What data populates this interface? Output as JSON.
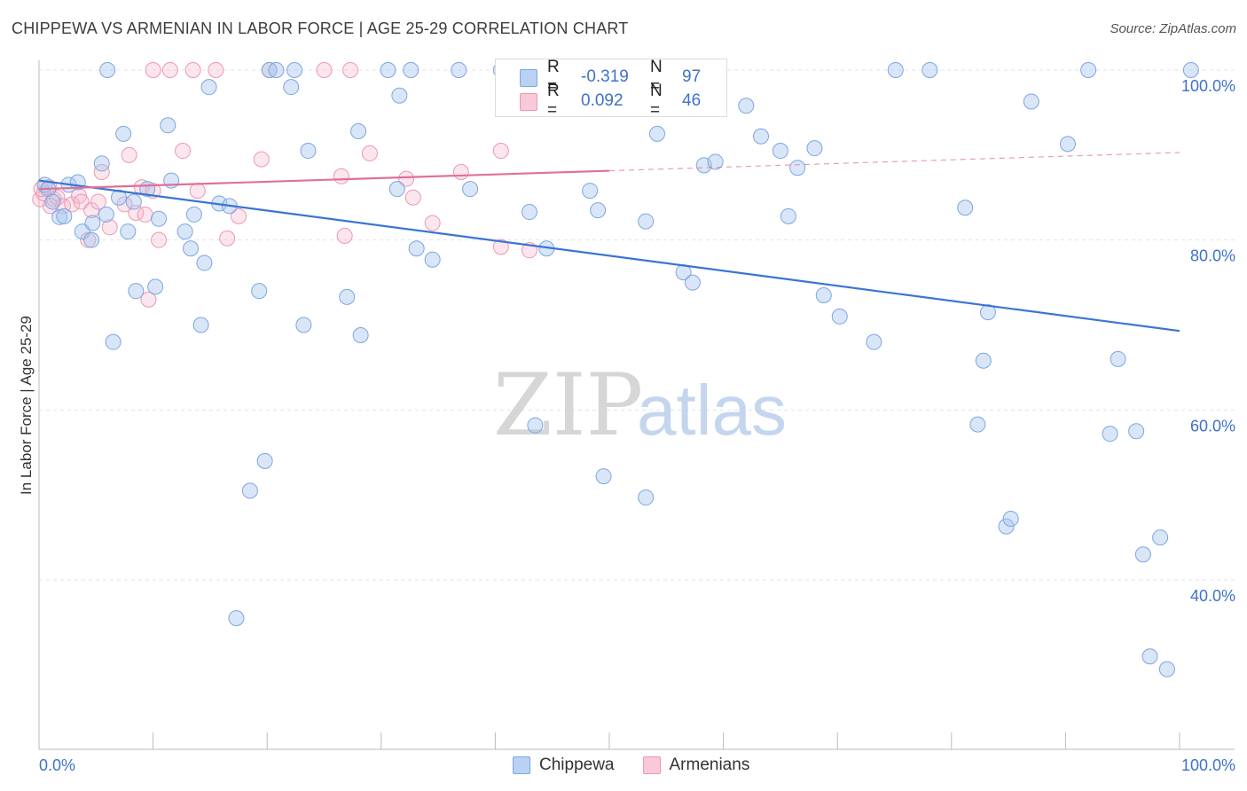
{
  "header": {
    "title": "CHIPPEWA VS ARMENIAN IN LABOR FORCE | AGE 25-29 CORRELATION CHART",
    "source": "Source: ZipAtlas.com"
  },
  "legend": {
    "rows": [
      {
        "r_label": "R =",
        "r_value": "-0.319",
        "n_label": "N =",
        "n_value": "97"
      },
      {
        "r_label": "R =",
        "r_value": "0.092",
        "n_label": "N =",
        "n_value": "46"
      }
    ]
  },
  "bottom_legend": {
    "items": [
      {
        "label": "Chippewa"
      },
      {
        "label": "Armenians"
      }
    ]
  },
  "watermark": {
    "zip": "ZIP",
    "atlas": "atlas"
  },
  "chart_data": {
    "type": "scatter",
    "title": "CHIPPEWA VS ARMENIAN IN LABOR FORCE | AGE 25-29 CORRELATION CHART",
    "xlabel": "",
    "ylabel": "In Labor Force | Age 25-29",
    "xlim": [
      0,
      100
    ],
    "ylim": [
      20,
      102
    ],
    "x_tick_labels": [
      "0.0%",
      "100.0%"
    ],
    "y_ticks": [
      40,
      60,
      80,
      100
    ],
    "y_tick_labels": [
      "40.0%",
      "60.0%",
      "80.0%",
      "100.0%"
    ],
    "grid": true,
    "colors": {
      "chippewa": "#a9c8f0",
      "chippewa_line": "#3a74d4",
      "armenians": "#f6b8cc",
      "armenians_line": "#e0709a"
    },
    "series": [
      {
        "name": "Chippewa",
        "r": -0.319,
        "n": 97,
        "trend": {
          "x0": 0,
          "y0": 87.0,
          "x1": 100,
          "y1": 69.3
        },
        "points": [
          [
            0.5,
            86.5
          ],
          [
            0.8,
            86.0
          ],
          [
            1.2,
            84.5
          ],
          [
            1.8,
            82.7
          ],
          [
            2.2,
            82.8
          ],
          [
            2.6,
            86.5
          ],
          [
            3.4,
            86.8
          ],
          [
            3.8,
            81.0
          ],
          [
            4.6,
            80.0
          ],
          [
            4.7,
            82.0
          ],
          [
            5.5,
            89.0
          ],
          [
            5.9,
            83.0
          ],
          [
            6.5,
            68.0
          ],
          [
            7.0,
            85.0
          ],
          [
            7.4,
            92.5
          ],
          [
            7.8,
            81.0
          ],
          [
            8.3,
            84.5
          ],
          [
            8.5,
            74.0
          ],
          [
            9.5,
            86.0
          ],
          [
            10.2,
            74.5
          ],
          [
            10.5,
            82.5
          ],
          [
            11.3,
            93.5
          ],
          [
            11.6,
            87.0
          ],
          [
            12.8,
            81.0
          ],
          [
            13.3,
            79.0
          ],
          [
            13.6,
            83.0
          ],
          [
            14.2,
            70.0
          ],
          [
            14.5,
            77.3
          ],
          [
            14.9,
            98.0
          ],
          [
            15.8,
            84.3
          ],
          [
            16.7,
            84.0
          ],
          [
            17.3,
            35.5
          ],
          [
            18.5,
            50.5
          ],
          [
            19.3,
            74.0
          ],
          [
            19.8,
            54.0
          ],
          [
            20.2,
            100.0
          ],
          [
            20.8,
            100.0
          ],
          [
            22.1,
            98.0
          ],
          [
            22.4,
            100.0
          ],
          [
            23.2,
            70.0
          ],
          [
            23.6,
            90.5
          ],
          [
            27.0,
            73.3
          ],
          [
            28.0,
            92.8
          ],
          [
            28.2,
            68.8
          ],
          [
            30.6,
            100.0
          ],
          [
            31.4,
            86.0
          ],
          [
            31.6,
            97.0
          ],
          [
            32.6,
            100.0
          ],
          [
            33.1,
            79.0
          ],
          [
            34.5,
            77.7
          ],
          [
            36.8,
            100.0
          ],
          [
            37.8,
            86.0
          ],
          [
            43.0,
            83.3
          ],
          [
            43.5,
            58.2
          ],
          [
            44.5,
            79.0
          ],
          [
            44.8,
            95.5
          ],
          [
            48.3,
            85.8
          ],
          [
            49.0,
            83.5
          ],
          [
            49.5,
            52.2
          ],
          [
            53.2,
            49.7
          ],
          [
            53.2,
            82.2
          ],
          [
            54.2,
            92.5
          ],
          [
            56.5,
            76.2
          ],
          [
            58.3,
            88.8
          ],
          [
            59.3,
            89.2
          ],
          [
            62.0,
            95.8
          ],
          [
            63.3,
            92.2
          ],
          [
            65.0,
            90.5
          ],
          [
            65.7,
            82.8
          ],
          [
            68.0,
            90.8
          ],
          [
            68.8,
            73.5
          ],
          [
            70.2,
            71.0
          ],
          [
            73.2,
            68.0
          ],
          [
            75.1,
            100.0
          ],
          [
            78.1,
            100.0
          ],
          [
            81.2,
            83.8
          ],
          [
            82.3,
            58.3
          ],
          [
            82.8,
            65.8
          ],
          [
            83.2,
            71.5
          ],
          [
            84.8,
            46.3
          ],
          [
            85.2,
            47.2
          ],
          [
            87.0,
            96.3
          ],
          [
            90.2,
            91.3
          ],
          [
            92.0,
            100.0
          ],
          [
            93.9,
            57.2
          ],
          [
            94.6,
            66.0
          ],
          [
            96.2,
            57.5
          ],
          [
            96.8,
            43.0
          ],
          [
            97.4,
            31.0
          ],
          [
            98.3,
            45.0
          ],
          [
            98.9,
            29.5
          ],
          [
            101.0,
            100.0
          ],
          [
            66.5,
            88.5
          ],
          [
            57.3,
            75.0
          ],
          [
            40.5,
            100.0
          ],
          [
            6.0,
            100.0
          ],
          [
            46.2,
            100.0
          ]
        ]
      },
      {
        "name": "Armenians",
        "r": 0.092,
        "n": 46,
        "trend": {
          "x0": 0,
          "y0": 86.0,
          "x1": 100,
          "y1": 90.3
        },
        "points": [
          [
            0.1,
            84.8
          ],
          [
            0.4,
            85.5
          ],
          [
            0.9,
            86.2
          ],
          [
            1.3,
            84.8
          ],
          [
            1.6,
            85.0
          ],
          [
            2.1,
            84.0
          ],
          [
            2.9,
            84.2
          ],
          [
            3.5,
            85.2
          ],
          [
            3.7,
            84.5
          ],
          [
            4.3,
            80.0
          ],
          [
            4.6,
            83.5
          ],
          [
            5.2,
            84.5
          ],
          [
            5.5,
            88.0
          ],
          [
            6.2,
            81.5
          ],
          [
            7.5,
            84.2
          ],
          [
            7.9,
            90.0
          ],
          [
            8.5,
            83.2
          ],
          [
            9.0,
            86.2
          ],
          [
            9.3,
            83.0
          ],
          [
            9.6,
            73.0
          ],
          [
            10.0,
            85.8
          ],
          [
            10.5,
            80.0
          ],
          [
            12.6,
            90.5
          ],
          [
            13.5,
            100.0
          ],
          [
            13.9,
            85.8
          ],
          [
            15.5,
            100.0
          ],
          [
            16.5,
            80.2
          ],
          [
            17.5,
            82.8
          ],
          [
            19.5,
            89.5
          ],
          [
            26.5,
            87.5
          ],
          [
            26.8,
            80.5
          ],
          [
            29.0,
            90.2
          ],
          [
            32.2,
            87.2
          ],
          [
            32.8,
            85.0
          ],
          [
            34.5,
            82.0
          ],
          [
            37.0,
            88.0
          ],
          [
            40.5,
            79.2
          ],
          [
            40.5,
            90.5
          ],
          [
            43.0,
            78.8
          ],
          [
            10.0,
            100.0
          ],
          [
            11.5,
            100.0
          ],
          [
            20.2,
            100.0
          ],
          [
            25.0,
            100.0
          ],
          [
            27.3,
            100.0
          ],
          [
            1.0,
            84.0
          ],
          [
            0.2,
            86.0
          ]
        ]
      }
    ]
  }
}
